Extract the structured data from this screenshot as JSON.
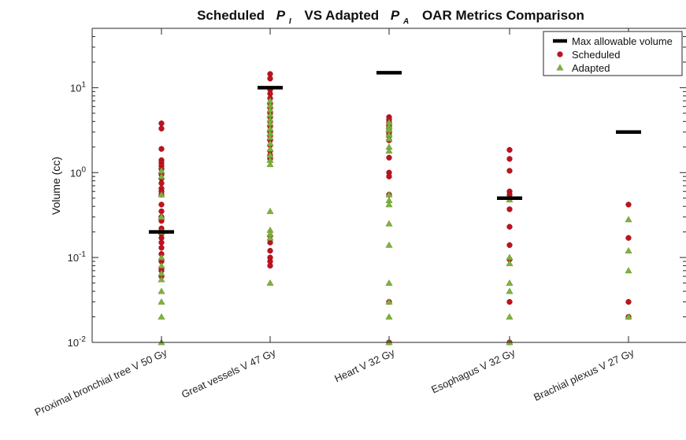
{
  "chart_data": {
    "type": "scatter",
    "title": {
      "part1": "Scheduled",
      "sym1": "P",
      "sub1": "I",
      "part2": "VS  Adapted",
      "sym2": "P",
      "sub2": "A",
      "part3": "OAR Metrics Comparison"
    },
    "ylabel": "Volume (cc)",
    "xlabel": "",
    "yscale": "log",
    "ylim": [
      0.01,
      50
    ],
    "yticks": [
      {
        "value": 0.01,
        "base": "10",
        "exp": "-2"
      },
      {
        "value": 0.1,
        "base": "10",
        "exp": "-1"
      },
      {
        "value": 1,
        "base": "10",
        "exp": "0"
      },
      {
        "value": 10,
        "base": "10",
        "exp": "1"
      }
    ],
    "grid": false,
    "legend_position": "top-right",
    "categories": [
      "Proximal bronchial tree V 50 Gy",
      "Great vessels V 47 Gy",
      "Heart V 32 Gy",
      "Esophagus V 32 Gy",
      "Brachial plexus V 27 Gy"
    ],
    "series": [
      {
        "name": "Max allowable volume",
        "marker": "bar",
        "color": "#000000",
        "values": [
          0.2,
          10,
          15,
          0.5,
          3
        ]
      },
      {
        "name": "Scheduled",
        "marker": "circle",
        "color": "#c0121f",
        "values": [
          [
            3.8,
            3.3,
            1.9,
            1.4,
            1.3,
            1.2,
            1.1,
            0.95,
            0.85,
            0.75,
            0.65,
            0.6,
            0.55,
            0.42,
            0.35,
            0.3,
            0.27,
            0.22,
            0.19,
            0.17,
            0.15,
            0.13,
            0.11,
            0.09,
            0.075,
            0.07,
            0.06
          ],
          [
            14.5,
            12.8,
            9.5,
            8.5,
            7.5,
            6.5,
            5.8,
            5.0,
            4.5,
            4.0,
            3.5,
            3.0,
            2.7,
            2.4,
            2.1,
            1.8,
            1.6,
            1.45,
            0.18,
            0.15,
            0.12,
            0.1,
            0.09,
            0.08
          ],
          [
            4.5,
            4.2,
            3.9,
            3.6,
            3.4,
            3.1,
            2.9,
            2.7,
            2.4,
            1.5,
            1.0,
            0.9,
            0.55,
            0.03,
            0.01
          ],
          [
            1.85,
            1.45,
            1.05,
            0.6,
            0.55,
            0.37,
            0.23,
            0.14,
            0.095,
            0.03,
            0.01
          ],
          [
            0.42,
            0.17,
            0.03,
            0.02
          ]
        ]
      },
      {
        "name": "Adapted",
        "marker": "triangle",
        "color": "#7fb13e",
        "values": [
          [
            1.05,
            0.9,
            0.55,
            0.3,
            0.2,
            0.1,
            0.08,
            0.065,
            0.055,
            0.04,
            0.03,
            0.02,
            0.01
          ],
          [
            7.0,
            6.2,
            5.5,
            4.8,
            4.2,
            3.8,
            3.3,
            2.9,
            2.6,
            2.2,
            1.9,
            1.6,
            1.4,
            1.25,
            0.35,
            0.21,
            0.19,
            0.17,
            0.05
          ],
          [
            3.9,
            3.5,
            3.2,
            2.8,
            2.5,
            2.0,
            1.8,
            0.55,
            0.47,
            0.42,
            0.25,
            0.14,
            0.05,
            0.03,
            0.02,
            0.01
          ],
          [
            0.48,
            0.1,
            0.085,
            0.05,
            0.04,
            0.02,
            0.01
          ],
          [
            0.28,
            0.12,
            0.07,
            0.02
          ]
        ]
      }
    ]
  }
}
